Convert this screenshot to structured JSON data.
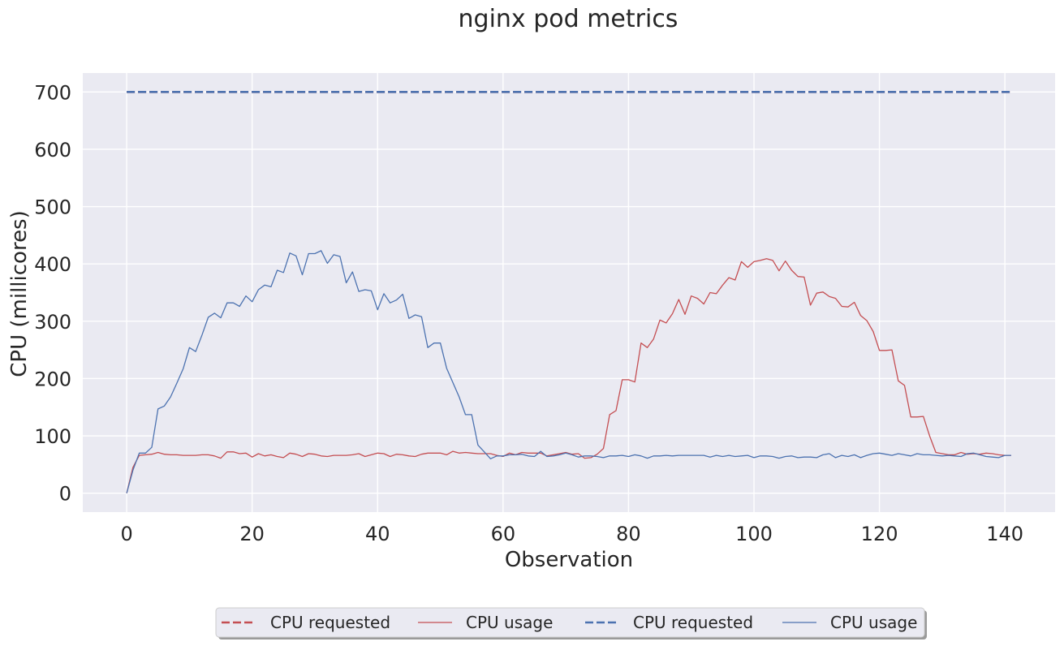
{
  "chart_data": {
    "type": "line",
    "title": "nginx pod metrics",
    "xlabel": "Observation",
    "ylabel": "CPU (millicores)",
    "xlim": [
      -7,
      148
    ],
    "ylim": [
      -33,
      733
    ],
    "xticks": [
      0,
      20,
      40,
      60,
      80,
      100,
      120,
      140
    ],
    "yticks": [
      0,
      100,
      200,
      300,
      400,
      500,
      600,
      700
    ],
    "grid": true,
    "legend_position": "bottom-center",
    "series": [
      {
        "name": "CPU requested",
        "color": "#c44e52",
        "style": "dashed",
        "x": [
          0,
          141
        ],
        "y": [
          700,
          700
        ]
      },
      {
        "name": "CPU usage",
        "color": "#c44e52",
        "style": "solid",
        "x": [
          0,
          1,
          2,
          3,
          4,
          5,
          6,
          7,
          8,
          9,
          10,
          11,
          12,
          13,
          14,
          15,
          16,
          17,
          18,
          19,
          20,
          21,
          22,
          23,
          24,
          25,
          26,
          27,
          28,
          29,
          30,
          31,
          32,
          33,
          34,
          35,
          36,
          37,
          38,
          39,
          40,
          41,
          42,
          43,
          44,
          45,
          46,
          47,
          48,
          49,
          50,
          51,
          52,
          53,
          54,
          55,
          56,
          57,
          58,
          59,
          60,
          61,
          62,
          63,
          64,
          65,
          66,
          67,
          68,
          69,
          70,
          71,
          72,
          73,
          74,
          75,
          76,
          77,
          78,
          79,
          80,
          81,
          82,
          83,
          84,
          85,
          86,
          87,
          88,
          89,
          90,
          91,
          92,
          93,
          94,
          95,
          96,
          97,
          98,
          99,
          100,
          101,
          102,
          103,
          104,
          105,
          106,
          107,
          108,
          109,
          110,
          111,
          112,
          113,
          114,
          115,
          116,
          117,
          118,
          119,
          120,
          121,
          122,
          123,
          124,
          125,
          126,
          127,
          128,
          129,
          130,
          131,
          132,
          133,
          134,
          135,
          136,
          137,
          138,
          139,
          140,
          141
        ],
        "y": [
          0,
          45,
          66,
          67,
          68,
          71,
          68,
          67,
          67,
          66,
          66,
          66,
          67,
          67,
          65,
          61,
          72,
          72,
          69,
          70,
          63,
          69,
          65,
          67,
          64,
          62,
          70,
          68,
          64,
          69,
          68,
          65,
          64,
          66,
          66,
          66,
          67,
          69,
          64,
          67,
          70,
          69,
          64,
          68,
          67,
          65,
          64,
          68,
          70,
          70,
          70,
          67,
          73,
          70,
          71,
          70,
          69,
          69,
          69,
          66,
          64,
          70,
          67,
          71,
          70,
          70,
          70,
          65,
          67,
          69,
          71,
          68,
          69,
          61,
          62,
          68,
          78,
          137,
          144,
          198,
          198,
          194,
          262,
          254,
          269,
          302,
          297,
          313,
          338,
          312,
          344,
          340,
          330,
          350,
          348,
          363,
          376,
          372,
          404,
          394,
          404,
          406,
          409,
          406,
          388,
          405,
          389,
          378,
          377,
          328,
          349,
          351,
          343,
          340,
          326,
          325,
          333,
          310,
          301,
          282,
          249,
          249,
          250,
          196,
          188,
          133,
          133,
          134,
          100,
          71,
          69,
          67,
          67,
          71,
          68,
          69,
          68,
          70,
          69,
          67,
          66,
          66
        ]
      },
      {
        "name": "CPU requested",
        "color": "#4c72b0",
        "style": "dashed",
        "x": [
          0,
          141
        ],
        "y": [
          700,
          700
        ]
      },
      {
        "name": "CPU usage",
        "color": "#4c72b0",
        "style": "solid",
        "x": [
          0,
          1,
          2,
          3,
          4,
          5,
          6,
          7,
          8,
          9,
          10,
          11,
          12,
          13,
          14,
          15,
          16,
          17,
          18,
          19,
          20,
          21,
          22,
          23,
          24,
          25,
          26,
          27,
          28,
          29,
          30,
          31,
          32,
          33,
          34,
          35,
          36,
          37,
          38,
          39,
          40,
          41,
          42,
          43,
          44,
          45,
          46,
          47,
          48,
          49,
          50,
          51,
          52,
          53,
          54,
          55,
          56,
          57,
          58,
          59,
          60,
          61,
          62,
          63,
          64,
          65,
          66,
          67,
          68,
          69,
          70,
          71,
          72,
          73,
          74,
          75,
          76,
          77,
          78,
          79,
          80,
          81,
          82,
          83,
          84,
          85,
          86,
          87,
          88,
          89,
          90,
          91,
          92,
          93,
          94,
          95,
          96,
          97,
          98,
          99,
          100,
          101,
          102,
          103,
          104,
          105,
          106,
          107,
          108,
          109,
          110,
          111,
          112,
          113,
          114,
          115,
          116,
          117,
          118,
          119,
          120,
          121,
          122,
          123,
          124,
          125,
          126,
          127,
          128,
          129,
          130,
          131,
          132,
          133,
          134,
          135,
          136,
          137,
          138,
          139,
          140,
          141
        ],
        "y": [
          0,
          40,
          70,
          70,
          80,
          147,
          152,
          168,
          192,
          217,
          254,
          247,
          276,
          307,
          314,
          306,
          332,
          332,
          326,
          344,
          334,
          355,
          363,
          360,
          389,
          385,
          419,
          414,
          381,
          418,
          418,
          423,
          401,
          416,
          413,
          367,
          386,
          352,
          355,
          353,
          320,
          348,
          332,
          337,
          347,
          305,
          311,
          308,
          254,
          262,
          262,
          218,
          193,
          168,
          137,
          137,
          84,
          72,
          60,
          65,
          65,
          67,
          67,
          68,
          65,
          64,
          73,
          64,
          65,
          67,
          70,
          67,
          63,
          65,
          65,
          64,
          62,
          65,
          65,
          66,
          64,
          67,
          65,
          61,
          65,
          65,
          66,
          65,
          66,
          66,
          66,
          66,
          66,
          63,
          66,
          64,
          66,
          64,
          65,
          66,
          62,
          65,
          65,
          64,
          61,
          64,
          65,
          62,
          63,
          63,
          62,
          67,
          69,
          62,
          66,
          64,
          67,
          62,
          66,
          69,
          70,
          68,
          66,
          69,
          67,
          65,
          69,
          67,
          67,
          66,
          65,
          66,
          65,
          64,
          69,
          70,
          67,
          64,
          63,
          62,
          66,
          66
        ]
      }
    ]
  }
}
